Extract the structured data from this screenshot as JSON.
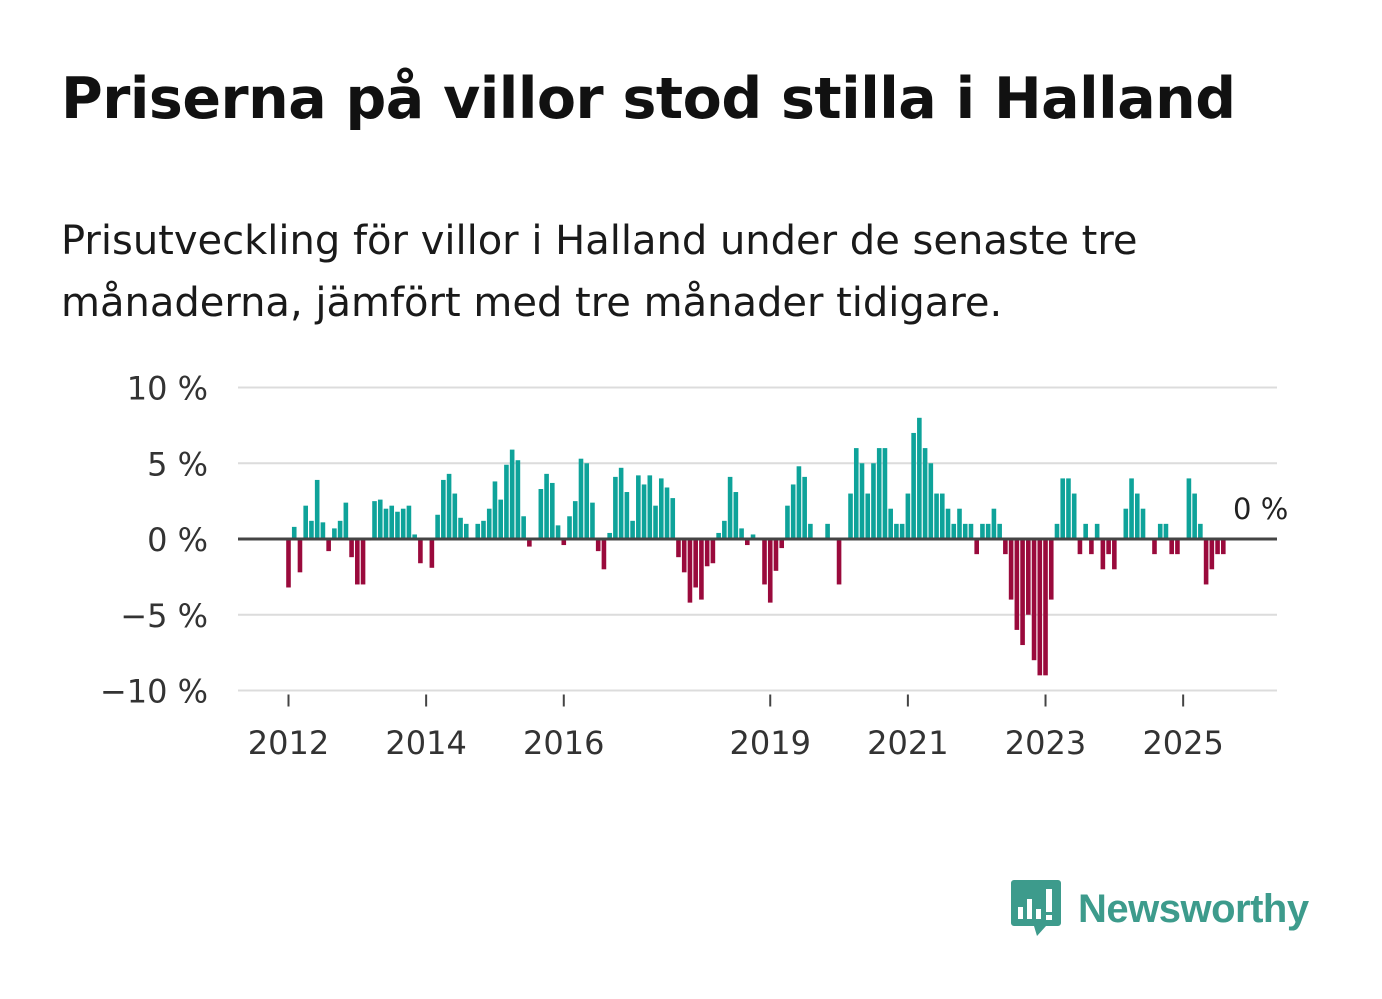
{
  "title": "Priserna på villor stod stilla i Halland",
  "subtitle": "Prisutveckling för villor i Halland under de senaste tre månaderna, jämfört med tre månader tidigare.",
  "brand": {
    "name": "Newsworthy",
    "icon": "newsworthy-logo-icon",
    "color": "#3d9b8c"
  },
  "colors": {
    "positive": "#0ea39a",
    "negative": "#9a0a3c",
    "grid": "#dcdcdc",
    "baseline": "#444444",
    "label": "#333333"
  },
  "chart_data": {
    "type": "bar",
    "title": "Priserna på villor stod stilla i Halland",
    "unit": "%",
    "ylim": [
      -10,
      10
    ],
    "yticks": [
      10,
      5,
      0,
      -5,
      -10
    ],
    "ytick_labels": [
      "10 %",
      "5 %",
      "0 %",
      "−5 %",
      "−10 %"
    ],
    "xticks": [
      {
        "index": 0,
        "label": "2012"
      },
      {
        "index": 24,
        "label": "2014"
      },
      {
        "index": 48,
        "label": "2016"
      },
      {
        "index": 84,
        "label": "2019"
      },
      {
        "index": 108,
        "label": "2021"
      },
      {
        "index": 132,
        "label": "2023"
      },
      {
        "index": 156,
        "label": "2025"
      }
    ],
    "x_start": "2012-01",
    "frequency": "monthly",
    "grid": true,
    "last_value_label": "0 %",
    "values": [
      -3.2,
      0.8,
      -2.2,
      2.2,
      1.2,
      3.9,
      1.1,
      -0.8,
      0.7,
      1.2,
      2.4,
      -1.2,
      -3.0,
      -3.0,
      -0.1,
      2.5,
      2.6,
      2.0,
      2.2,
      1.8,
      2.0,
      2.2,
      0.3,
      -1.6,
      0.0,
      -1.9,
      1.6,
      3.9,
      4.3,
      3.0,
      1.4,
      1.0,
      0.0,
      1.0,
      1.2,
      2.0,
      3.8,
      2.6,
      4.9,
      5.9,
      5.2,
      1.5,
      -0.5,
      0.0,
      3.3,
      4.3,
      3.7,
      0.9,
      -0.4,
      1.5,
      2.5,
      5.3,
      5.0,
      2.4,
      -0.8,
      -2.0,
      0.4,
      4.1,
      4.7,
      3.1,
      1.2,
      4.2,
      3.6,
      4.2,
      2.2,
      4.0,
      3.4,
      2.7,
      -1.2,
      -2.2,
      -4.2,
      -3.2,
      -4.0,
      -1.8,
      -1.6,
      0.4,
      1.2,
      4.1,
      3.1,
      0.7,
      -0.4,
      0.3,
      0.0,
      -3.0,
      -4.2,
      -2.1,
      -0.6,
      2.2,
      3.6,
      4.8,
      4.1,
      1.0,
      0.0,
      0.0,
      1.0,
      0.0,
      -3.0,
      0.0,
      3.0,
      6.0,
      5.0,
      3.0,
      5.0,
      6.0,
      6.0,
      2.0,
      1.0,
      1.0,
      3.0,
      7.0,
      8.0,
      6.0,
      5.0,
      3.0,
      3.0,
      2.0,
      1.0,
      2.0,
      1.0,
      1.0,
      -1.0,
      1.0,
      1.0,
      2.0,
      1.0,
      -1.0,
      -4.0,
      -6.0,
      -7.0,
      -5.0,
      -8.0,
      -9.0,
      -9.0,
      -4.0,
      1.0,
      4.0,
      4.0,
      3.0,
      -1.0,
      1.0,
      -1.0,
      1.0,
      -2.0,
      -1.0,
      -2.0,
      0.0,
      2.0,
      4.0,
      3.0,
      2.0,
      0.0,
      -1.0,
      1.0,
      1.0,
      -1.0,
      -1.0,
      0.0,
      4.0,
      3.0,
      1.0,
      -3.0,
      -2.0,
      -1.0,
      -1.0,
      0.0
    ]
  }
}
